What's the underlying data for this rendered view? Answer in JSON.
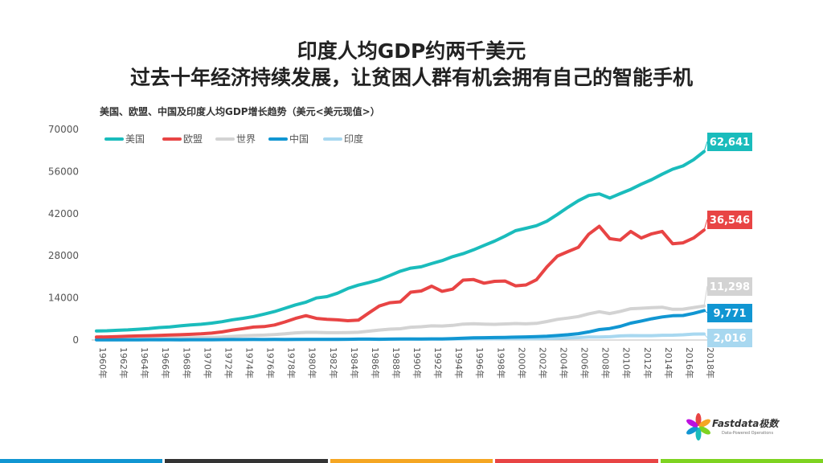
{
  "header": {
    "title_line1": "印度人均GDP约两千美元",
    "title_line2": "过去十年经济持续发展，让贫困人群有机会拥有自己的智能手机"
  },
  "logo": {
    "name": "Fastdata极数",
    "tagline": "Data-Powered Operations"
  },
  "chart_data": {
    "type": "line",
    "subtitle": "美国、欧盟、中国及印度人均GDP增长趋势（美元<美元现值>）",
    "ylim": [
      0,
      70000
    ],
    "yticks": [
      "0",
      "14000",
      "28000",
      "42000",
      "56000",
      "70000"
    ],
    "x": [
      "1960年",
      "1961年",
      "1962年",
      "1963年",
      "1964年",
      "1965年",
      "1966年",
      "1967年",
      "1968年",
      "1969年",
      "1970年",
      "1971年",
      "1972年",
      "1973年",
      "1974年",
      "1975年",
      "1976年",
      "1977年",
      "1978年",
      "1979年",
      "1980年",
      "1981年",
      "1982年",
      "1983年",
      "1984年",
      "1985年",
      "1986年",
      "1987年",
      "1988年",
      "1989年",
      "1990年",
      "1991年",
      "1992年",
      "1993年",
      "1994年",
      "1995年",
      "1996年",
      "1997年",
      "1998年",
      "1999年",
      "2000年",
      "2001年",
      "2002年",
      "2003年",
      "2004年",
      "2005年",
      "2006年",
      "2007年",
      "2008年",
      "2009年",
      "2010年",
      "2011年",
      "2012年",
      "2013年",
      "2014年",
      "2015年",
      "2016年",
      "2017年",
      "2018年"
    ],
    "xticks_shown": [
      "1960年",
      "1962年",
      "1964年",
      "1966年",
      "1968年",
      "1970年",
      "1972年",
      "1974年",
      "1976年",
      "1978年",
      "1980年",
      "1982年",
      "1984年",
      "1986年",
      "1988年",
      "1990年",
      "1992年",
      "1994年",
      "1996年",
      "1998年",
      "2000年",
      "2002年",
      "2004年",
      "2006年",
      "2008年",
      "2010年",
      "2012年",
      "2014年",
      "2016年",
      "2018年"
    ],
    "legend_position": "top-left",
    "grid": false,
    "series": [
      {
        "name": "美国",
        "color": "#1ABCBC",
        "end_label": "62,641",
        "values": [
          3007,
          3067,
          3244,
          3375,
          3574,
          3828,
          4146,
          4336,
          4696,
          5032,
          5234,
          5609,
          6094,
          6726,
          7226,
          7801,
          8592,
          9453,
          10565,
          11674,
          12575,
          13976,
          14434,
          15544,
          17121,
          18237,
          19071,
          20039,
          21417,
          22857,
          23889,
          24342,
          25419,
          26387,
          27695,
          28691,
          29968,
          31459,
          32854,
          34515,
          36330,
          37134,
          37998,
          39490,
          41725,
          44123,
          46302,
          48050,
          48570,
          47195,
          48651,
          50066,
          51784,
          53291,
          55124,
          56763,
          57867,
          59915,
          62641
        ]
      },
      {
        "name": "欧盟",
        "color": "#E84444",
        "end_label": "36,546",
        "values": [
          1000,
          1050,
          1150,
          1250,
          1350,
          1450,
          1550,
          1650,
          1750,
          1900,
          2050,
          2300,
          2700,
          3300,
          3800,
          4300,
          4450,
          5000,
          6000,
          7200,
          8100,
          7200,
          6900,
          6700,
          6400,
          6600,
          9000,
          11300,
          12400,
          12700,
          15900,
          16300,
          17900,
          16200,
          16900,
          19900,
          20100,
          18900,
          19500,
          19600,
          18000,
          18300,
          20000,
          24300,
          27900,
          29400,
          30800,
          35200,
          37800,
          33700,
          33200,
          36100,
          33900,
          35300,
          36100,
          32000,
          32300,
          33900,
          36546
        ]
      },
      {
        "name": "世界",
        "color": "#D3D3D3",
        "end_label": "11,298",
        "values": [
          450,
          470,
          490,
          520,
          560,
          600,
          640,
          670,
          710,
          780,
          810,
          880,
          990,
          1200,
          1400,
          1540,
          1640,
          1820,
          2070,
          2380,
          2530,
          2530,
          2430,
          2430,
          2480,
          2560,
          2940,
          3310,
          3620,
          3740,
          4250,
          4400,
          4690,
          4650,
          4870,
          5280,
          5390,
          5300,
          5200,
          5340,
          5490,
          5380,
          5530,
          6150,
          6860,
          7300,
          7800,
          8700,
          9400,
          8800,
          9500,
          10400,
          10560,
          10750,
          10900,
          10200,
          10250,
          10800,
          11298
        ]
      },
      {
        "name": "中国",
        "color": "#1196D2",
        "end_label": "9,771",
        "values": [
          90,
          75,
          70,
          74,
          85,
          98,
          104,
          96,
          91,
          99,
          113,
          118,
          131,
          156,
          160,
          178,
          165,
          185,
          156,
          184,
          195,
          197,
          203,
          225,
          251,
          294,
          281,
          252,
          284,
          311,
          318,
          333,
          366,
          377,
          473,
          610,
          709,
          781,
          829,
          873,
          959,
          1053,
          1149,
          1289,
          1509,
          1753,
          2099,
          2694,
          3468,
          3832,
          4550,
          5618,
          6317,
          7051,
          7679,
          8067,
          8148,
          8879,
          9771
        ]
      },
      {
        "name": "印度",
        "color": "#A8D8F0",
        "end_label": "2,016",
        "values": [
          82,
          85,
          89,
          101,
          115,
          119,
          90,
          96,
          99,
          107,
          112,
          118,
          122,
          143,
          163,
          158,
          161,
          186,
          206,
          224,
          267,
          271,
          274,
          291,
          276,
          296,
          310,
          340,
          354,
          346,
          368,
          303,
          316,
          301,
          346,
          374,
          400,
          415,
          413,
          442,
          443,
          452,
          471,
          546,
          627,
          714,
          806,
          1028,
          999,
          1102,
          1358,
          1458,
          1444,
          1450,
          1574,
          1606,
          1733,
          1982,
          2016
        ]
      }
    ]
  }
}
